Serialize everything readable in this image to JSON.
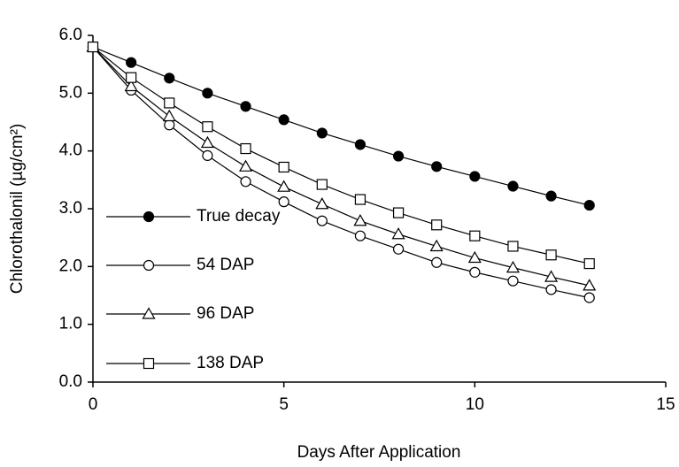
{
  "chart_data": {
    "type": "line",
    "xlabel": "Days After Application",
    "ylabel": "Chlorothalonil (µg/cm²)",
    "x": [
      0,
      1,
      2,
      3,
      4,
      5,
      6,
      7,
      8,
      9,
      10,
      11,
      12,
      13
    ],
    "series": [
      {
        "name": "True decay",
        "color": "#000000",
        "marker": "circle",
        "marker_fill": "#000000",
        "values": [
          5.8,
          5.53,
          5.26,
          5.0,
          4.77,
          4.54,
          4.31,
          4.11,
          3.91,
          3.73,
          3.56,
          3.39,
          3.22,
          3.06
        ]
      },
      {
        "name": "54 DAP",
        "color": "#000000",
        "marker": "circle",
        "marker_fill": "#ffffff",
        "values": [
          5.8,
          5.05,
          4.45,
          3.92,
          3.47,
          3.12,
          2.79,
          2.53,
          2.3,
          2.07,
          1.9,
          1.75,
          1.6,
          1.46
        ]
      },
      {
        "name": "96 DAP",
        "color": "#000000",
        "marker": "triangle",
        "marker_fill": "#ffffff",
        "values": [
          5.8,
          5.12,
          4.6,
          4.14,
          3.73,
          3.38,
          3.08,
          2.79,
          2.56,
          2.35,
          2.15,
          1.98,
          1.82,
          1.67
        ]
      },
      {
        "name": "138 DAP",
        "color": "#000000",
        "marker": "square",
        "marker_fill": "#ffffff",
        "values": [
          5.8,
          5.27,
          4.83,
          4.42,
          4.04,
          3.72,
          3.42,
          3.16,
          2.93,
          2.72,
          2.53,
          2.35,
          2.2,
          2.05
        ]
      }
    ],
    "xlim": [
      0,
      15
    ],
    "xticks": [
      0,
      5,
      10,
      15
    ],
    "ylim": [
      0,
      6
    ],
    "yticks": [
      {
        "value": 0,
        "label": "0.0"
      },
      {
        "value": 1,
        "label": "1.0"
      },
      {
        "value": 2,
        "label": "2.0"
      },
      {
        "value": 3,
        "label": "3.0"
      },
      {
        "value": 4,
        "label": "4.0"
      },
      {
        "value": 5,
        "label": "5.0"
      },
      {
        "value": 6,
        "label": "6.0"
      }
    ],
    "grid": false,
    "legend": "lower left"
  }
}
